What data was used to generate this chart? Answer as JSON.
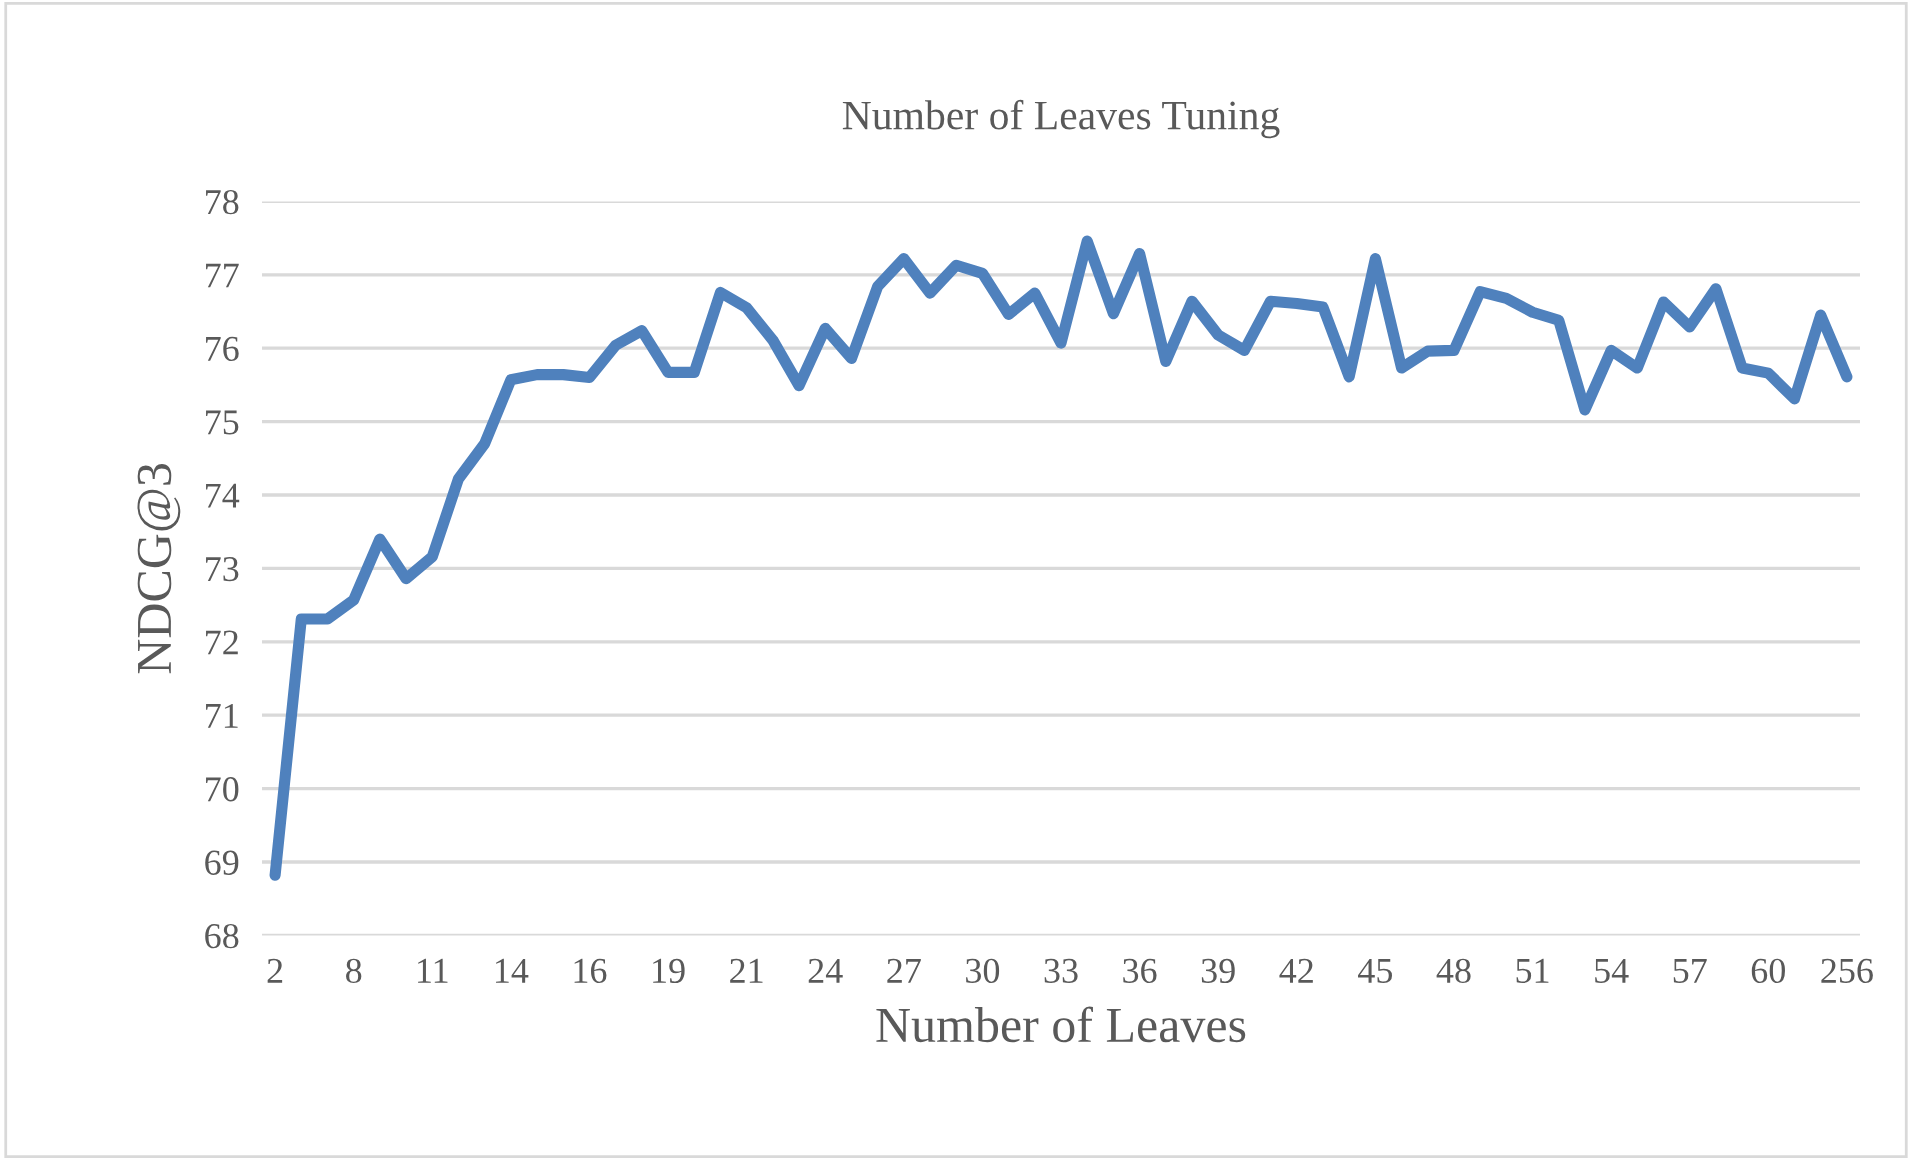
{
  "chart_data": {
    "type": "line",
    "title": "Number of Leaves Tuning",
    "xlabel": "Number of Leaves",
    "ylabel": "NDCG@3",
    "categories": [
      "2",
      null,
      null,
      "8",
      null,
      null,
      "11",
      null,
      null,
      "14",
      null,
      null,
      "16",
      null,
      null,
      "19",
      null,
      null,
      "21",
      null,
      null,
      "24",
      null,
      null,
      "27",
      null,
      null,
      "30",
      null,
      null,
      "33",
      null,
      null,
      "36",
      null,
      null,
      "39",
      null,
      null,
      "42",
      null,
      null,
      "45",
      null,
      null,
      "48",
      null,
      null,
      "51",
      null,
      null,
      "54",
      null,
      null,
      "57",
      null,
      null,
      "60",
      null,
      null,
      "256"
    ],
    "series": [
      {
        "color": "#4f81bd",
        "values": [
          68.82,
          72.31,
          72.31,
          72.57,
          73.4,
          72.86,
          73.16,
          74.22,
          74.7,
          75.57,
          75.64,
          75.64,
          75.6,
          76.04,
          76.24,
          75.67,
          75.67,
          76.76,
          76.55,
          76.11,
          75.49,
          76.27,
          75.86,
          76.84,
          77.22,
          76.75,
          77.13,
          77.02,
          76.46,
          76.75,
          76.07,
          77.46,
          76.47,
          77.29,
          75.82,
          76.64,
          76.18,
          75.97,
          76.64,
          76.61,
          76.56,
          75.61,
          77.22,
          75.73,
          75.96,
          75.97,
          76.77,
          76.68,
          76.49,
          76.38,
          75.16,
          75.97,
          75.73,
          76.63,
          76.29,
          76.81,
          75.73,
          75.66,
          75.31,
          76.45,
          75.61
        ]
      }
    ],
    "ylim": [
      68,
      78
    ],
    "yticks": [
      68,
      69,
      70,
      71,
      72,
      73,
      74,
      75,
      76,
      77,
      78
    ],
    "grid": "y",
    "legend": false,
    "marker": "none",
    "line_style": "solid"
  }
}
